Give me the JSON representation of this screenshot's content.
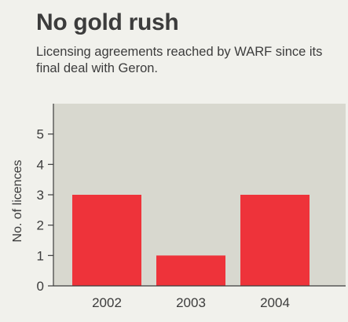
{
  "chart_data": {
    "type": "bar",
    "title": "No gold rush",
    "subtitle": "Licensing agreements reached by WARF since its final deal with Geron.",
    "xlabel": "",
    "ylabel": "No. of licences",
    "categories": [
      "2002",
      "2003",
      "2004"
    ],
    "values": [
      3,
      1,
      3
    ],
    "ylim": [
      0,
      6
    ],
    "yticks": [
      0,
      1,
      2,
      3,
      4,
      5
    ],
    "grid": false,
    "legend": "none",
    "colors": {
      "bar": "#ee333a",
      "plot_background": "#d8d8cf",
      "page_background": "#f1f1ec",
      "axis": "#3c3c3c",
      "text": "#3c3c3c"
    }
  }
}
